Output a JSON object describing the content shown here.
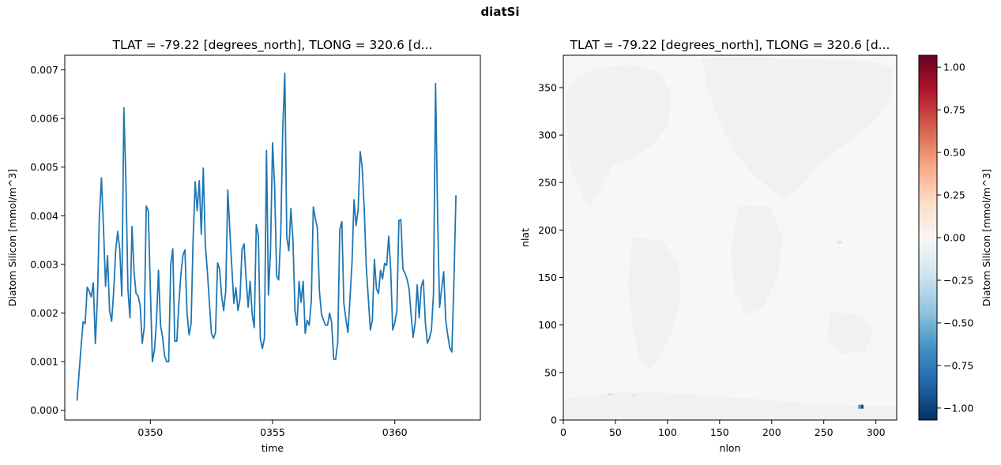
{
  "figure": {
    "suptitle": "diatSi"
  },
  "chart_data": [
    {
      "type": "line",
      "title": "TLAT = -79.22 [degrees_north], TLONG = 320.6 [d...",
      "xlabel": "time",
      "ylabel": "Diatom Silicon [mmol/m^3]",
      "xlim": [
        346.5,
        363.5
      ],
      "ylim": [
        -0.0002,
        0.0073
      ],
      "xticks": [
        350,
        355,
        360
      ],
      "xtick_labels": [
        "0350",
        "0355",
        "0360"
      ],
      "yticks": [
        0.0,
        0.001,
        0.002,
        0.003,
        0.004,
        0.005,
        0.006,
        0.007
      ],
      "ytick_labels": [
        "0.000",
        "0.001",
        "0.002",
        "0.003",
        "0.004",
        "0.005",
        "0.006",
        "0.007"
      ],
      "grid": false,
      "color": "#1f77b4",
      "series": [
        {
          "x_start": 347.0,
          "x_step": 0.083333,
          "values": [
            0.0002,
            0.00075,
            0.0013,
            0.00182,
            0.00178,
            0.00253,
            0.00245,
            0.00233,
            0.00262,
            0.00137,
            0.0023,
            0.004,
            0.00478,
            0.00375,
            0.00255,
            0.00318,
            0.00205,
            0.00183,
            0.00245,
            0.0033,
            0.00368,
            0.0033,
            0.00235,
            0.00622,
            0.0047,
            0.0025,
            0.0019,
            0.00378,
            0.00285,
            0.0024,
            0.00235,
            0.00215,
            0.00138,
            0.0017,
            0.0042,
            0.0041,
            0.0025,
            0.001,
            0.00125,
            0.0018,
            0.00288,
            0.00175,
            0.0015,
            0.00112,
            0.001,
            0.001,
            0.003,
            0.00332,
            0.00142,
            0.00142,
            0.0022,
            0.0028,
            0.00318,
            0.0033,
            0.002,
            0.00155,
            0.00178,
            0.0035,
            0.0047,
            0.0041,
            0.00472,
            0.00362,
            0.00498,
            0.0034,
            0.00285,
            0.0022,
            0.00158,
            0.00148,
            0.0016,
            0.00303,
            0.0029,
            0.00235,
            0.00205,
            0.00245,
            0.00453,
            0.0037,
            0.00295,
            0.0022,
            0.00252,
            0.00205,
            0.00228,
            0.0033,
            0.00342,
            0.0027,
            0.00212,
            0.00265,
            0.00198,
            0.0017,
            0.00382,
            0.0036,
            0.00147,
            0.00127,
            0.00148,
            0.00534,
            0.00237,
            0.0033,
            0.0055,
            0.0046,
            0.00276,
            0.00268,
            0.0036,
            0.0058,
            0.00693,
            0.00355,
            0.00328,
            0.00415,
            0.0035,
            0.00205,
            0.00175,
            0.00265,
            0.00222,
            0.00265,
            0.00158,
            0.00185,
            0.00175,
            0.00225,
            0.00418,
            0.00395,
            0.00375,
            0.00245,
            0.00198,
            0.00185,
            0.00175,
            0.00175,
            0.002,
            0.0018,
            0.00105,
            0.00105,
            0.0014,
            0.00372,
            0.00388,
            0.0022,
            0.00188,
            0.0016,
            0.0023,
            0.00305,
            0.00433,
            0.0038,
            0.00412,
            0.00532,
            0.005,
            0.00415,
            0.00295,
            0.0023,
            0.00165,
            0.00185,
            0.0031,
            0.0025,
            0.0024,
            0.00288,
            0.0027,
            0.00302,
            0.00298,
            0.00358,
            0.0029,
            0.00165,
            0.0018,
            0.00205,
            0.0039,
            0.00392,
            0.0029,
            0.00282,
            0.0027,
            0.0025,
            0.00198,
            0.0015,
            0.0018,
            0.00258,
            0.0019,
            0.00255,
            0.00268,
            0.0018,
            0.00138,
            0.00148,
            0.00165,
            0.0024,
            0.00672,
            0.004,
            0.00212,
            0.0025,
            0.00285,
            0.00185,
            0.00155,
            0.00128,
            0.0012,
            0.0026,
            0.00442
          ]
        }
      ]
    },
    {
      "type": "heatmap",
      "title": "TLAT = -79.22 [degrees_north], TLONG = 320.6 [d...",
      "xlabel": "nlon",
      "ylabel": "nlat",
      "xlim": [
        0,
        320
      ],
      "ylim": [
        0,
        384
      ],
      "xticks": [
        0,
        50,
        100,
        150,
        200,
        250,
        300
      ],
      "xtick_labels": [
        "0",
        "50",
        "100",
        "150",
        "200",
        "250",
        "300"
      ],
      "yticks": [
        0,
        50,
        100,
        150,
        200,
        250,
        300,
        350
      ],
      "ytick_labels": [
        "0",
        "50",
        "100",
        "150",
        "200",
        "250",
        "300",
        "350"
      ],
      "grid": false,
      "background_value": 0.0,
      "colormap": "RdBu_r",
      "colorbar": {
        "label": "Diatom Silicon [mmol/m^3]",
        "vmin": -1.07,
        "vmax": 1.07,
        "ticks": [
          -1.0,
          -0.75,
          -0.5,
          -0.25,
          0.0,
          0.25,
          0.5,
          0.75,
          1.0
        ],
        "tick_labels": [
          "−1.00",
          "−0.75",
          "−0.50",
          "−0.25",
          "0.00",
          "0.25",
          "0.50",
          "0.75",
          "1.00"
        ],
        "stops": [
          "#053061",
          "#2166ac",
          "#4393c3",
          "#92c5de",
          "#d1e5f0",
          "#f7f7f7",
          "#fddbc7",
          "#f4a582",
          "#d6604d",
          "#b2182b",
          "#67001f"
        ]
      },
      "anomalies": [
        {
          "nlon": 286.5,
          "nlat": 14.0,
          "value": -1.05
        },
        {
          "nlon": 284.5,
          "nlat": 14.0,
          "value": -0.6
        },
        {
          "nlon": 45.0,
          "nlat": 27.0,
          "value": 0.22
        },
        {
          "nlon": 68.0,
          "nlat": 26.0,
          "value": 0.18
        },
        {
          "nlon": 265.0,
          "nlat": 187.0,
          "value": -0.2
        }
      ]
    }
  ]
}
